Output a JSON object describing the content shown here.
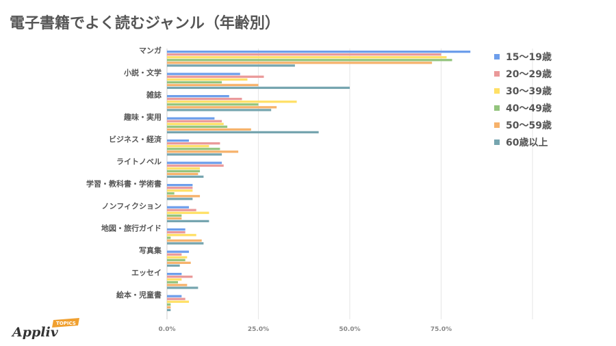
{
  "title": "電子書籍でよく読むジャンル（年齢別）",
  "logo": {
    "brand": "Appliv",
    "badge": "TOPICS"
  },
  "chart_data": {
    "type": "bar",
    "orientation": "horizontal",
    "categories": [
      "マンガ",
      "小説・文学",
      "雑誌",
      "趣味・実用",
      "ビジネス・経済",
      "ライトノベル",
      "学習・教科書・学術書",
      "ノンフィクション",
      "地図・旅行ガイド",
      "写真集",
      "エッセイ",
      "絵本・児童書"
    ],
    "xlim": [
      0,
      100
    ],
    "x_ticks": [
      "0.0%",
      "25.0%",
      "50.0%",
      "75.0%"
    ],
    "grid": true,
    "legend_position": "right",
    "series": [
      {
        "name": "15〜19歳",
        "color": "#6d9eeb",
        "values": [
          83,
          20,
          17,
          13,
          6,
          15,
          7,
          6,
          5,
          6,
          4,
          4
        ]
      },
      {
        "name": "20〜29歳",
        "color": "#ea9999",
        "values": [
          75,
          26.5,
          20.5,
          15,
          14.5,
          15.5,
          7,
          8,
          5,
          4,
          7,
          5
        ]
      },
      {
        "name": "30〜39歳",
        "color": "#ffe066",
        "values": [
          76.5,
          22,
          35.5,
          15.5,
          11.5,
          9,
          7,
          11.5,
          8,
          5.5,
          4,
          6
        ]
      },
      {
        "name": "40〜49歳",
        "color": "#93c47d",
        "values": [
          78,
          15,
          25,
          16.5,
          14.5,
          9,
          2,
          4,
          1,
          5,
          3,
          1
        ]
      },
      {
        "name": "50〜59歳",
        "color": "#f6b26b",
        "values": [
          72.5,
          25,
          30,
          23,
          19.5,
          8.5,
          9,
          4,
          9.5,
          6.5,
          5.5,
          1
        ]
      },
      {
        "name": "60歳以上",
        "color": "#76a5af",
        "values": [
          35,
          50,
          28.5,
          41.5,
          15,
          10,
          7,
          11.5,
          10,
          3.5,
          8.5,
          1
        ]
      }
    ]
  }
}
